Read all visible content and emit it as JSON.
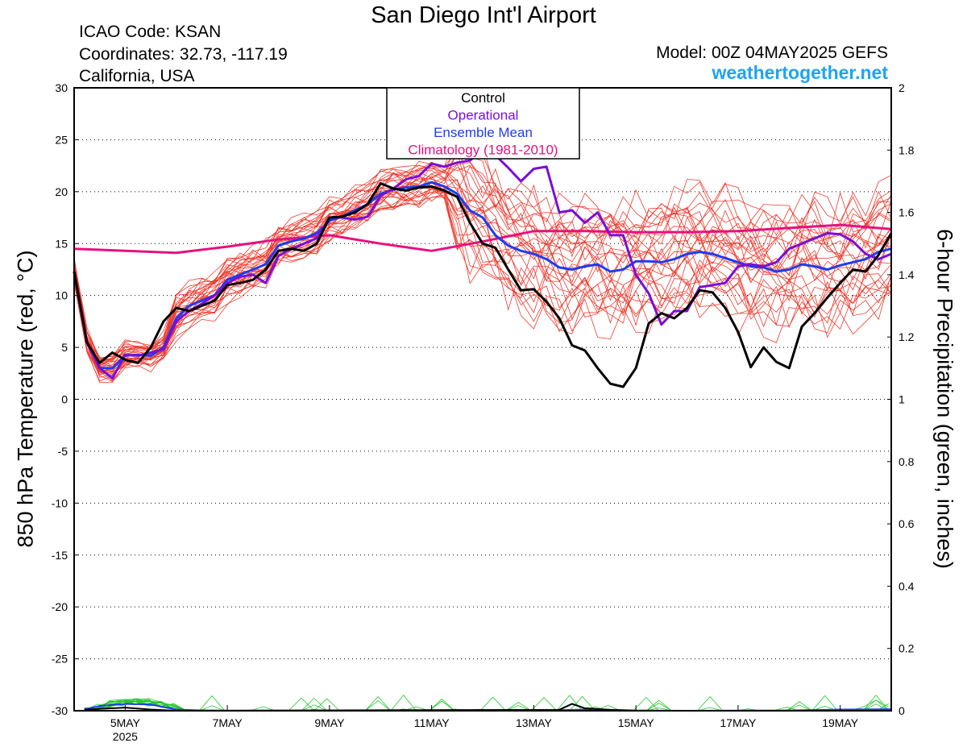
{
  "header": {
    "title": "San Diego Int'l Airport",
    "icao": "ICAO Code: KSAN",
    "coordinates": "Coordinates: 32.73, -117.19",
    "region": "California, USA",
    "model": "Model: 00Z 04MAY2025 GEFS",
    "site": "weathertogether.net"
  },
  "chart_data": {
    "type": "line",
    "ylabel": "850 hPa Temperature (red, °C)",
    "y2label": "6-hour Precipitation (green, inches)",
    "ylim": [
      -30,
      30
    ],
    "y2lim": [
      0,
      2
    ],
    "xlim": [
      4.0,
      20.0
    ],
    "yticks": [
      30,
      25,
      20,
      15,
      10,
      5,
      0,
      -5,
      -10,
      -15,
      -20,
      -25,
      -30
    ],
    "y2ticks": [
      "2",
      "1.8",
      "1.6",
      "1.4",
      "1.2",
      "1",
      "0.8",
      "0.6",
      "0.4",
      "0.2",
      "0"
    ],
    "xticks": [
      {
        "x": 5,
        "label": "5MAY",
        "sub": "2025"
      },
      {
        "x": 7,
        "label": "7MAY",
        "sub": ""
      },
      {
        "x": 9,
        "label": "9MAY",
        "sub": ""
      },
      {
        "x": 11,
        "label": "11MAY",
        "sub": ""
      },
      {
        "x": 13,
        "label": "13MAY",
        "sub": ""
      },
      {
        "x": 15,
        "label": "15MAY",
        "sub": ""
      },
      {
        "x": 17,
        "label": "17MAY",
        "sub": ""
      },
      {
        "x": 19,
        "label": "19MAY",
        "sub": ""
      }
    ],
    "grid": "horizontal dotted",
    "legend_position": "top-center",
    "legend": [
      {
        "label": "Control",
        "color": "#000000"
      },
      {
        "label": "Operational",
        "color": "#7a0fd6"
      },
      {
        "label": "Ensemble Mean",
        "color": "#1f3bef"
      },
      {
        "label": "Climatology (1981-2010)",
        "color": "#e8107e"
      }
    ],
    "colors": {
      "members": "#ee3b2f",
      "control": "#000000",
      "operational": "#7a0fd6",
      "ensemble_mean": "#1f3bef",
      "climatology": "#e8107e",
      "precip_members": "#22c62a",
      "precip_mean": "#1f3bef"
    },
    "series": [
      {
        "key": "control",
        "points": [
          [
            4,
            12.3
          ],
          [
            4.25,
            5.5
          ],
          [
            4.5,
            3.5
          ],
          [
            4.75,
            4.5
          ],
          [
            5,
            3.8
          ],
          [
            5.25,
            3.5
          ],
          [
            5.5,
            5
          ],
          [
            5.75,
            7.5
          ],
          [
            6,
            8.8
          ],
          [
            6.25,
            8.5
          ],
          [
            6.5,
            9
          ],
          [
            6.75,
            9.5
          ],
          [
            7,
            11
          ],
          [
            7.25,
            11.2
          ],
          [
            7.5,
            11.5
          ],
          [
            7.75,
            12.5
          ],
          [
            8,
            14.3
          ],
          [
            8.25,
            14.5
          ],
          [
            8.5,
            14.3
          ],
          [
            8.75,
            15
          ],
          [
            9,
            17.5
          ],
          [
            9.25,
            17.6
          ],
          [
            9.5,
            18
          ],
          [
            9.75,
            18.8
          ],
          [
            10,
            20.8
          ],
          [
            10.25,
            20.3
          ],
          [
            10.5,
            20.1
          ],
          [
            10.75,
            20.4
          ],
          [
            11,
            20.5
          ],
          [
            11.25,
            20.1
          ],
          [
            11.5,
            19.5
          ],
          [
            11.75,
            17
          ],
          [
            12,
            15
          ],
          [
            12.25,
            14.6
          ],
          [
            12.5,
            12.5
          ],
          [
            12.75,
            10.5
          ],
          [
            13,
            10.6
          ],
          [
            13.25,
            9.4
          ],
          [
            13.5,
            7.8
          ],
          [
            13.75,
            5.2
          ],
          [
            14,
            4.7
          ],
          [
            14.25,
            3
          ],
          [
            14.5,
            1.5
          ],
          [
            14.75,
            1.2
          ],
          [
            15,
            3
          ],
          [
            15.25,
            7.3
          ],
          [
            15.5,
            8.3
          ],
          [
            15.75,
            7.8
          ],
          [
            16,
            8.8
          ],
          [
            16.25,
            10.5
          ],
          [
            16.5,
            10.3
          ],
          [
            16.75,
            8.8
          ],
          [
            17,
            6.5
          ],
          [
            17.25,
            3.1
          ],
          [
            17.5,
            5
          ],
          [
            17.75,
            3.6
          ],
          [
            18,
            3
          ],
          [
            18.25,
            7
          ],
          [
            18.5,
            8.3
          ],
          [
            18.75,
            9.8
          ],
          [
            19,
            11.2
          ],
          [
            19.25,
            12.5
          ],
          [
            19.5,
            12.3
          ],
          [
            19.75,
            13.9
          ],
          [
            20,
            16
          ]
        ]
      },
      {
        "key": "operational",
        "points": [
          [
            4,
            12.3
          ],
          [
            4.25,
            5.5
          ],
          [
            4.5,
            3
          ],
          [
            4.75,
            2
          ],
          [
            5,
            4.3
          ],
          [
            5.25,
            4.2
          ],
          [
            5.5,
            4.5
          ],
          [
            5.75,
            4.8
          ],
          [
            6,
            7.5
          ],
          [
            6.25,
            8.5
          ],
          [
            6.5,
            9.2
          ],
          [
            6.75,
            10
          ],
          [
            7,
            11.2
          ],
          [
            7.25,
            11.8
          ],
          [
            7.5,
            12
          ],
          [
            7.75,
            11.2
          ],
          [
            8,
            13.8
          ],
          [
            8.25,
            14.5
          ],
          [
            8.5,
            15
          ],
          [
            8.75,
            15.5
          ],
          [
            9,
            17.5
          ],
          [
            9.25,
            17.5
          ],
          [
            9.5,
            17.3
          ],
          [
            9.75,
            17.6
          ],
          [
            10,
            19.6
          ],
          [
            10.25,
            20.3
          ],
          [
            10.5,
            21.2
          ],
          [
            10.75,
            21.5
          ],
          [
            11,
            22.7
          ],
          [
            11.25,
            22.4
          ],
          [
            11.5,
            22.8
          ],
          [
            11.75,
            23
          ],
          [
            12,
            24
          ],
          [
            12.25,
            23.5
          ],
          [
            12.5,
            22.3
          ],
          [
            12.75,
            21
          ],
          [
            13,
            22.2
          ],
          [
            13.25,
            22.4
          ],
          [
            13.5,
            18
          ],
          [
            13.75,
            18.2
          ],
          [
            14,
            17
          ],
          [
            14.25,
            18
          ],
          [
            14.5,
            15.8
          ],
          [
            14.75,
            15.8
          ],
          [
            15,
            12
          ],
          [
            15.25,
            10.2
          ],
          [
            15.5,
            7.2
          ],
          [
            15.75,
            8.5
          ],
          [
            16,
            8.5
          ],
          [
            16.25,
            10.8
          ],
          [
            16.5,
            11
          ],
          [
            16.75,
            11.2
          ],
          [
            17,
            12.8
          ],
          [
            17.25,
            13
          ],
          [
            17.5,
            12.8
          ],
          [
            17.75,
            13.2
          ],
          [
            18,
            14.5
          ],
          [
            18.25,
            15
          ],
          [
            18.5,
            15.5
          ],
          [
            18.75,
            16
          ],
          [
            19,
            15.9
          ],
          [
            19.25,
            15.2
          ],
          [
            19.5,
            14
          ],
          [
            19.75,
            13.5
          ],
          [
            20,
            14
          ]
        ]
      },
      {
        "key": "ensemble_mean",
        "points": [
          [
            4,
            12.3
          ],
          [
            4.25,
            5.5
          ],
          [
            4.5,
            3
          ],
          [
            4.75,
            3
          ],
          [
            5,
            4.2
          ],
          [
            5.25,
            4.3
          ],
          [
            5.5,
            4.2
          ],
          [
            5.75,
            5
          ],
          [
            6,
            7.8
          ],
          [
            6.25,
            9
          ],
          [
            6.5,
            9.5
          ],
          [
            6.75,
            10
          ],
          [
            7,
            11.5
          ],
          [
            7.25,
            12
          ],
          [
            7.5,
            12.5
          ],
          [
            7.75,
            13
          ],
          [
            8,
            14.8
          ],
          [
            8.25,
            15.2
          ],
          [
            8.5,
            15.5
          ],
          [
            8.75,
            16
          ],
          [
            9,
            17.2
          ],
          [
            9.25,
            17.6
          ],
          [
            9.5,
            18.2
          ],
          [
            9.75,
            18.8
          ],
          [
            10,
            19.8
          ],
          [
            10.25,
            20.2
          ],
          [
            10.5,
            20.4
          ],
          [
            10.75,
            20.5
          ],
          [
            11,
            20.9
          ],
          [
            11.25,
            20.5
          ],
          [
            11.5,
            19.8
          ],
          [
            11.75,
            18.2
          ],
          [
            12,
            17.5
          ],
          [
            12.25,
            15.8
          ],
          [
            12.5,
            14.8
          ],
          [
            12.75,
            14.3
          ],
          [
            13,
            14
          ],
          [
            13.25,
            13.5
          ],
          [
            13.5,
            12.7
          ],
          [
            13.75,
            12.5
          ],
          [
            14,
            12.8
          ],
          [
            14.25,
            13
          ],
          [
            14.5,
            12.3
          ],
          [
            14.75,
            12.5
          ],
          [
            15,
            13.3
          ],
          [
            15.25,
            13.3
          ],
          [
            15.5,
            13.2
          ],
          [
            15.75,
            13.5
          ],
          [
            16,
            14
          ],
          [
            16.25,
            14.2
          ],
          [
            16.5,
            14
          ],
          [
            16.75,
            13.6
          ],
          [
            17,
            13.2
          ],
          [
            17.25,
            12.8
          ],
          [
            17.5,
            12.7
          ],
          [
            17.75,
            12.3
          ],
          [
            18,
            12.5
          ],
          [
            18.25,
            13
          ],
          [
            18.5,
            12.8
          ],
          [
            18.75,
            12.5
          ],
          [
            19,
            12.9
          ],
          [
            19.25,
            13.2
          ],
          [
            19.5,
            13.5
          ],
          [
            19.75,
            14.2
          ],
          [
            20,
            14.5
          ]
        ]
      },
      {
        "key": "climatology",
        "points": [
          [
            4,
            14.5
          ],
          [
            6,
            14.1
          ],
          [
            7,
            14.7
          ],
          [
            8,
            15.4
          ],
          [
            9,
            15.8
          ],
          [
            10,
            15
          ],
          [
            11,
            14.3
          ],
          [
            12,
            15.2
          ],
          [
            13,
            16.2
          ],
          [
            14,
            16.2
          ],
          [
            15,
            16.1
          ],
          [
            16,
            16.1
          ],
          [
            17,
            16.2
          ],
          [
            18,
            16.5
          ],
          [
            19,
            16.8
          ],
          [
            20,
            16.4
          ]
        ]
      }
    ],
    "member_count": 30,
    "precipitation": {
      "ensemble_mean": [
        [
          4.2,
          0.005
        ],
        [
          4.5,
          0.015
        ],
        [
          5,
          0.022
        ],
        [
          5.5,
          0.02
        ],
        [
          6,
          0.004
        ],
        [
          6.5,
          0.001
        ],
        [
          7,
          0
        ],
        [
          13.5,
          0.002
        ],
        [
          14,
          0.004
        ],
        [
          14.5,
          0.003
        ],
        [
          15,
          0.001
        ],
        [
          16,
          0
        ],
        [
          18,
          0.001
        ],
        [
          19,
          0.004
        ],
        [
          20,
          0.005
        ]
      ],
      "control": [
        [
          4.2,
          0.003
        ],
        [
          4.5,
          0.006
        ],
        [
          5,
          0.01
        ],
        [
          5.5,
          0.004
        ],
        [
          6,
          0
        ],
        [
          13.5,
          0.003
        ],
        [
          13.75,
          0.022
        ],
        [
          14,
          0.008
        ],
        [
          14.5,
          0.003
        ],
        [
          15,
          0
        ],
        [
          20,
          0
        ]
      ]
    }
  }
}
